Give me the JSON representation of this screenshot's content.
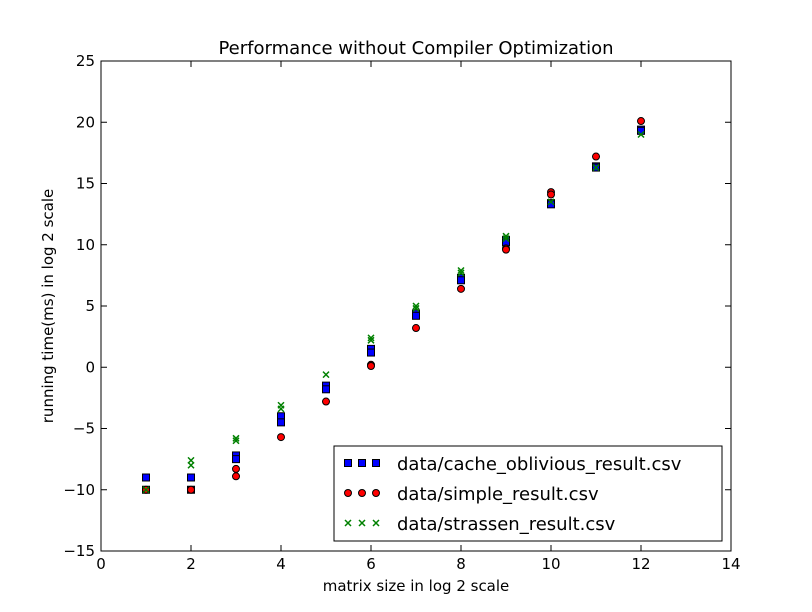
{
  "chart_data": {
    "type": "scatter",
    "title": "Performance without Compiler Optimization",
    "xlabel": "matrix size in log 2 scale",
    "ylabel": "running time(ms) in log 2 scale",
    "xlim": [
      0,
      14
    ],
    "ylim": [
      -15,
      25
    ],
    "xticks": [
      0,
      2,
      4,
      6,
      8,
      10,
      12,
      14
    ],
    "yticks": [
      -15,
      -10,
      -5,
      0,
      5,
      10,
      15,
      20,
      25
    ],
    "grid": false,
    "legend_position": "lower-right",
    "series": [
      {
        "name": "data/cache_oblivious_result.csv",
        "marker": "square",
        "color": "#0000ff",
        "points": [
          [
            1,
            -9.0
          ],
          [
            1,
            -10.0
          ],
          [
            2,
            -9.0
          ],
          [
            2,
            -10.0
          ],
          [
            3,
            -7.2
          ],
          [
            3,
            -7.5
          ],
          [
            4,
            -4.0
          ],
          [
            4,
            -4.5
          ],
          [
            5,
            -1.5
          ],
          [
            5,
            -1.8
          ],
          [
            6,
            1.5
          ],
          [
            6,
            1.2
          ],
          [
            7,
            4.4
          ],
          [
            7,
            4.2
          ],
          [
            8,
            7.3
          ],
          [
            8,
            7.1
          ],
          [
            9,
            10.4
          ],
          [
            9,
            10.2
          ],
          [
            10,
            13.4
          ],
          [
            10,
            13.3
          ],
          [
            11,
            16.4
          ],
          [
            11,
            16.3
          ],
          [
            12,
            19.4
          ],
          [
            12,
            19.3
          ]
        ]
      },
      {
        "name": "data/simple_result.csv",
        "marker": "circle",
        "color": "#ff0000",
        "points": [
          [
            1,
            -10.0
          ],
          [
            2,
            -10.0
          ],
          [
            3,
            -8.3
          ],
          [
            3,
            -8.9
          ],
          [
            4,
            -5.7
          ],
          [
            5,
            -2.8
          ],
          [
            6,
            0.2
          ],
          [
            6,
            0.1
          ],
          [
            7,
            3.2
          ],
          [
            8,
            6.4
          ],
          [
            9,
            9.7
          ],
          [
            9,
            9.6
          ],
          [
            10,
            14.3
          ],
          [
            10,
            14.1
          ],
          [
            11,
            17.2
          ],
          [
            12,
            20.1
          ]
        ]
      },
      {
        "name": "data/strassen_result.csv",
        "marker": "x",
        "color": "#008000",
        "points": [
          [
            1,
            -10.0
          ],
          [
            2,
            -7.6
          ],
          [
            2,
            -8.0
          ],
          [
            3,
            -5.8
          ],
          [
            3,
            -6.0
          ],
          [
            4,
            -3.1
          ],
          [
            4,
            -3.4
          ],
          [
            5,
            -0.6
          ],
          [
            6,
            2.4
          ],
          [
            6,
            2.2
          ],
          [
            7,
            5.0
          ],
          [
            7,
            4.8
          ],
          [
            8,
            7.9
          ],
          [
            8,
            7.7
          ],
          [
            9,
            10.7
          ],
          [
            9,
            10.5
          ],
          [
            10,
            13.5
          ],
          [
            11,
            16.3
          ],
          [
            12,
            19.0
          ]
        ]
      }
    ]
  }
}
